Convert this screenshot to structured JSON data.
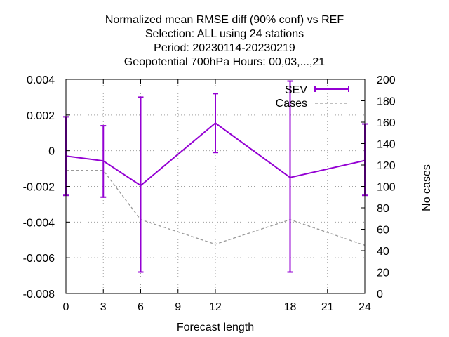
{
  "chart_data": {
    "type": "line",
    "title_lines": [
      "Normalized mean RMSE diff (90% conf) vs REF",
      "Selection: ALL using    24 stations",
      "Period: 20230114-20230219",
      "Geopotential 700hPa   Hours:  00,03,...,21"
    ],
    "xlabel": "Forecast length",
    "ylabel": "",
    "y2label": "No cases",
    "xlim": [
      0,
      24
    ],
    "ylim": [
      -0.008,
      0.004
    ],
    "y2lim": [
      0,
      200
    ],
    "xticks": [
      0,
      3,
      6,
      9,
      12,
      18,
      21,
      24
    ],
    "xtick_labels": [
      "0",
      "3",
      "6",
      "9",
      "12",
      "18",
      "21",
      "24"
    ],
    "yticks": [
      -0.008,
      -0.006,
      -0.004,
      -0.002,
      0,
      0.002,
      0.004
    ],
    "ytick_labels": [
      "-0.008",
      "-0.006",
      "-0.004",
      "-0.002",
      "0",
      "0.002",
      "0.004"
    ],
    "y2ticks": [
      0,
      20,
      40,
      60,
      80,
      100,
      120,
      140,
      160,
      180,
      200
    ],
    "y2tick_labels": [
      "0",
      "20",
      "40",
      "60",
      "80",
      "100",
      "120",
      "140",
      "160",
      "180",
      "200"
    ],
    "grid": true,
    "legend_position": "top-right",
    "series": [
      {
        "name": "SEV",
        "color": "#9400d3",
        "axis": "left",
        "x": [
          0,
          3,
          6,
          12,
          18,
          24
        ],
        "y": [
          -0.0003,
          -0.00057,
          -0.00195,
          0.00155,
          -0.0015,
          -0.00055
        ],
        "err_low": [
          -0.0025,
          -0.0026,
          -0.0068,
          -0.0001,
          -0.0068,
          -0.0025
        ],
        "err_high": [
          0.0019,
          0.0014,
          0.003,
          0.0032,
          0.0039,
          0.0015
        ]
      },
      {
        "name": "Cases",
        "color": "#999999",
        "axis": "right",
        "dashed": true,
        "x": [
          0,
          3,
          6,
          12,
          18,
          24
        ],
        "y": [
          115,
          115,
          69,
          46,
          69,
          45
        ]
      }
    ]
  }
}
